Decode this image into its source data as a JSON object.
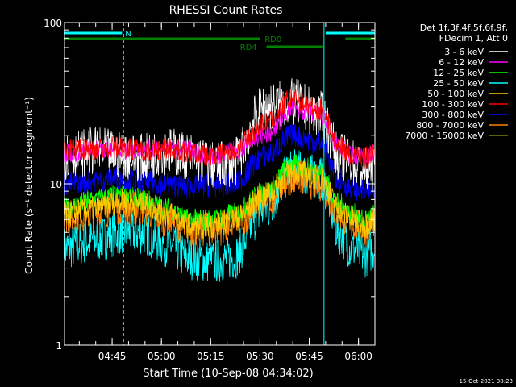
{
  "chart_data": {
    "type": "line",
    "title": "RHESSI Count Rates",
    "xlabel": "Start Time (10-Sep-08 04:34:02)",
    "ylabel": "Count Rate (s⁻¹ detector segment⁻¹)",
    "yscale": "log",
    "ylim": [
      1,
      100
    ],
    "yticks": [
      {
        "v": 1,
        "label": "1"
      },
      {
        "v": 10,
        "label": "10"
      },
      {
        "v": 100,
        "label": "100"
      }
    ],
    "xlim_minutes": [
      -3.5,
      91
    ],
    "xticks": [
      {
        "m": 11,
        "label": "04:45"
      },
      {
        "m": 26,
        "label": "05:00"
      },
      {
        "m": 41,
        "label": "05:15"
      },
      {
        "m": 56,
        "label": "05:30"
      },
      {
        "m": 71,
        "label": "05:45"
      },
      {
        "m": 86,
        "label": "06:00"
      }
    ],
    "legend": {
      "placement": "right",
      "header": [
        "Det 1f,3f,4f,5f,6f,9f,",
        "FDecim 1, Att 0"
      ]
    },
    "series": [
      {
        "name": "3 - 6 keV",
        "color": "#ffffff",
        "values": [
          15,
          16,
          15,
          14.5,
          16,
          15,
          13,
          13.5,
          30,
          32,
          27,
          15,
          13.5,
          12,
          12.5
        ]
      },
      {
        "name": "6 - 12 keV",
        "color": "#ff00ff",
        "values": [
          15.5,
          16.5,
          16,
          16.5,
          17,
          16,
          15,
          16,
          20,
          29,
          27,
          17,
          15,
          14.5,
          15.5
        ]
      },
      {
        "name": "12 - 25 keV",
        "color": "#00ff00",
        "values": [
          7,
          8,
          8.5,
          8,
          7,
          6,
          6,
          6.5,
          9,
          13,
          12,
          7.5,
          6.5,
          6,
          6.5
        ]
      },
      {
        "name": "25 - 50 keV",
        "color": "#00ffff",
        "values": [
          4,
          4.5,
          5,
          5,
          4.2,
          3.5,
          3.3,
          3.5,
          7,
          12,
          11,
          5,
          4,
          3.6,
          4
        ]
      },
      {
        "name": "50 - 100 keV",
        "color": "#ffc800",
        "values": [
          6.5,
          7,
          7.8,
          7.5,
          6.5,
          5.5,
          5.5,
          6,
          8.5,
          12,
          11,
          7,
          6,
          5.5,
          6
        ]
      },
      {
        "name": "100 - 300 keV",
        "color": "#ff0000",
        "values": [
          16,
          16.5,
          17,
          16,
          16.5,
          15.5,
          15,
          16,
          24,
          34,
          29,
          17,
          15,
          14.5,
          15.5
        ]
      },
      {
        "name": "300 - 800 keV",
        "color": "#0000ff",
        "values": [
          10,
          10.5,
          11,
          10.2,
          10,
          9.5,
          9.8,
          10,
          15,
          20,
          18,
          10.5,
          9.5,
          9,
          9.5
        ]
      },
      {
        "name": "800 - 7000 keV",
        "color": "#ff8000",
        "values": [
          6.2,
          6.6,
          7.2,
          7,
          6,
          5.2,
          5.2,
          5.6,
          8,
          11,
          10,
          6.6,
          5.6,
          5.2,
          5.6
        ]
      },
      {
        "name": "7000 - 15000 keV",
        "color": "#808000",
        "values": []
      }
    ],
    "x_minutes": [
      -3.5,
      6,
      14,
      20,
      28,
      34,
      42,
      48,
      58,
      66,
      74,
      80,
      84,
      88,
      91
    ],
    "annotations": {
      "solid_vlines_minutes": [
        -3.5,
        75.5
      ],
      "dashed_vlines_minutes": [
        14.5,
        91
      ],
      "bars": [
        {
          "label": "N",
          "color": "#00ffff",
          "row": 0,
          "segments": [
            [
              -3.5,
              14
            ]
          ]
        },
        {
          "label": "",
          "color": "#00ffff",
          "row": 0,
          "segments": [
            [
              76,
              91
            ]
          ]
        },
        {
          "label": "RD0",
          "color": "#008000",
          "row": 1,
          "segments": [
            [
              -3.5,
              56
            ],
            [
              82,
              91
            ]
          ],
          "label_at": 60
        },
        {
          "label": "RD4",
          "color": "#008000",
          "row": 2,
          "segments": [
            [
              58,
              75
            ]
          ],
          "label_at": 52.5
        }
      ]
    }
  },
  "footer": {
    "timestamp": "15-Oct-2021 08:23"
  }
}
